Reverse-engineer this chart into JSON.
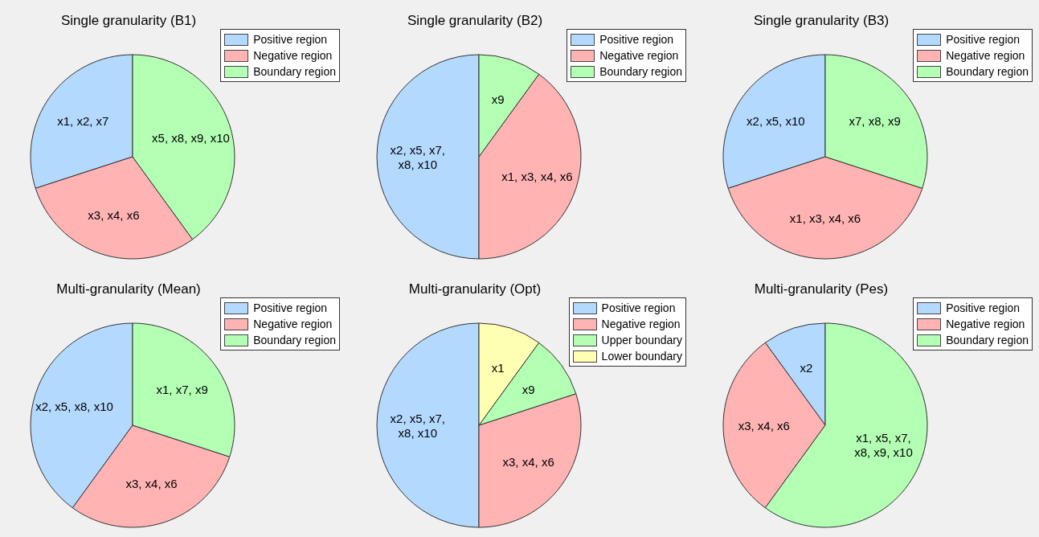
{
  "chart_data": [
    {
      "type": "pie",
      "title": "Single granularity (B1)",
      "categories": [
        "Positive region",
        "Negative region",
        "Boundary region"
      ],
      "values": [
        30,
        30,
        40
      ],
      "value_labels": [
        "x1, x2, x7",
        "x3, x4, x6",
        "x5, x8, x9, x10"
      ],
      "colors": [
        "#b3d9ff",
        "#ffb3b3",
        "#b3ffb3"
      ],
      "legend": "top right"
    },
    {
      "type": "pie",
      "title": "Single granularity (B2)",
      "categories": [
        "Positive region",
        "Negative region",
        "Boundary region"
      ],
      "values": [
        50,
        40,
        10
      ],
      "value_labels": [
        "x2, x5, x7, x8, x10",
        "x1, x3, x4, x6",
        "x9"
      ],
      "colors": [
        "#b3d9ff",
        "#ffb3b3",
        "#b3ffb3"
      ],
      "legend": "top right"
    },
    {
      "type": "pie",
      "title": "Single granularity (B3)",
      "categories": [
        "Positive region",
        "Negative region",
        "Boundary region"
      ],
      "values": [
        30,
        40,
        30
      ],
      "value_labels": [
        "x2, x5, x10",
        "x1, x3, x4, x6",
        "x7, x8, x9"
      ],
      "colors": [
        "#b3d9ff",
        "#ffb3b3",
        "#b3ffb3"
      ],
      "legend": "top right"
    },
    {
      "type": "pie",
      "title": "Multi-granularity (Mean)",
      "categories": [
        "Positive region",
        "Negative region",
        "Boundary region"
      ],
      "values": [
        40,
        30,
        30
      ],
      "value_labels": [
        "x2, x5, x8, x10",
        "x3, x4, x6",
        "x1, x7, x9"
      ],
      "colors": [
        "#b3d9ff",
        "#ffb3b3",
        "#b3ffb3"
      ],
      "legend": "top right"
    },
    {
      "type": "pie",
      "title": "Multi-granularity (Opt)",
      "categories": [
        "Positive region",
        "Negative region",
        "Upper boundary",
        "Lower boundary"
      ],
      "values": [
        50,
        30,
        10,
        10
      ],
      "value_labels": [
        "x2, x5, x7, x8, x10",
        "x3, x4, x6",
        "x9",
        "x1"
      ],
      "colors": [
        "#b3d9ff",
        "#ffb3b3",
        "#b3ffb3",
        "#ffffb3"
      ],
      "legend": "top right"
    },
    {
      "type": "pie",
      "title": "Multi-granularity (Pes)",
      "categories": [
        "Positive region",
        "Negative region",
        "Boundary region"
      ],
      "values": [
        10,
        30,
        60
      ],
      "value_labels": [
        "x2",
        "x3, x4, x6",
        "x1, x5, x7, x8, x9, x10"
      ],
      "colors": [
        "#b3d9ff",
        "#ffb3b3",
        "#b3ffb3"
      ],
      "legend": "top right"
    }
  ]
}
